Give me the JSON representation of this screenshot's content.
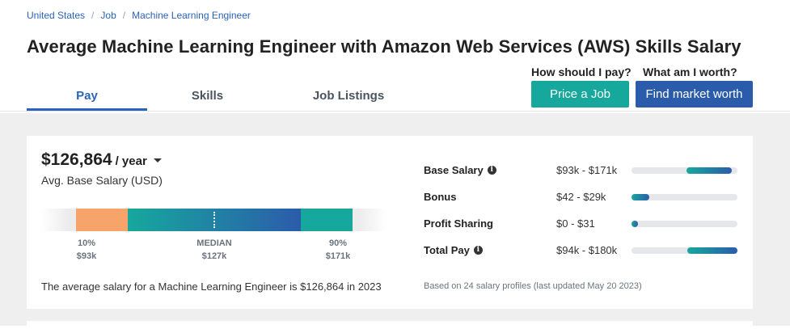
{
  "breadcrumb": [
    "United States",
    "Job",
    "Machine Learning Engineer"
  ],
  "title": "Average Machine Learning Engineer with Amazon Web Services (AWS) Skills Salary",
  "tabs": [
    {
      "label": "Pay",
      "active": true
    },
    {
      "label": "Skills",
      "active": false
    },
    {
      "label": "Job Listings",
      "active": false
    }
  ],
  "cta": {
    "pay_question": "How should I pay?",
    "price_button": "Price a Job",
    "worth_question": "What am I worth?",
    "worth_button": "Find market worth"
  },
  "salary": {
    "amount": "$126,864",
    "period": "/ year",
    "label": "Avg. Base Salary (USD)"
  },
  "range": {
    "low_pct": "10%",
    "low_val": "$93k",
    "median_label": "MEDIAN",
    "median_val": "$127k",
    "high_pct": "90%",
    "high_val": "$171k"
  },
  "sentence": "The average salary for a Machine Learning Engineer is $126,864 in 2023",
  "breakdown": [
    {
      "label": "Base Salary",
      "info": true,
      "range": "$93k - $171k",
      "fill_start": 0.52,
      "fill_end": 0.95
    },
    {
      "label": "Bonus",
      "info": false,
      "range": "$42 - $29k",
      "fill_start": 0.0,
      "fill_end": 0.17
    },
    {
      "label": "Profit Sharing",
      "info": false,
      "range": "$0 - $31",
      "fill_start": 0.0,
      "fill_end": 0.06
    },
    {
      "label": "Total Pay",
      "info": true,
      "range": "$94k - $180k",
      "fill_start": 0.53,
      "fill_end": 1.0
    }
  ],
  "footnote": "Based on 24 salary profiles (last updated May 20 2023)",
  "colors": {
    "accent_blue": "#2b5cab",
    "accent_teal": "#16a89d",
    "low_orange": "#f6a46a"
  }
}
